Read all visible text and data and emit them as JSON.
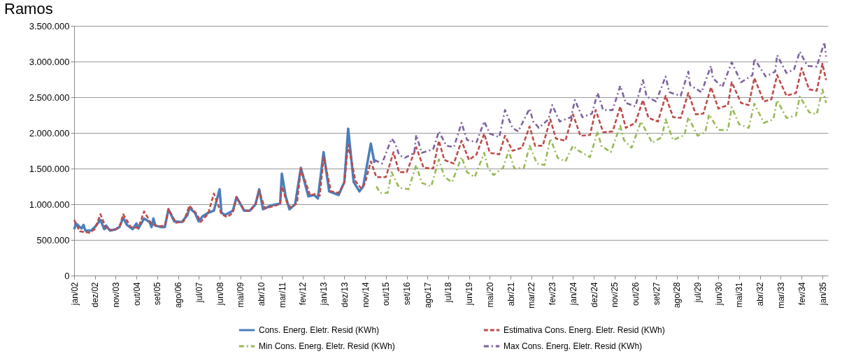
{
  "chart_data": {
    "type": "line",
    "title": "Ramos",
    "xlim": [
      "2002-01",
      "2035-04"
    ],
    "xticks": [
      {
        "value": "2002-01",
        "label": "jan/02"
      },
      {
        "value": "2002-12",
        "label": "dez/02"
      },
      {
        "value": "2003-11",
        "label": "nov/03"
      },
      {
        "value": "2004-10",
        "label": "out/04"
      },
      {
        "value": "2005-09",
        "label": "set/05"
      },
      {
        "value": "2006-08",
        "label": "ago/06"
      },
      {
        "value": "2007-07",
        "label": "jul/07"
      },
      {
        "value": "2008-06",
        "label": "jun/08"
      },
      {
        "value": "2009-05",
        "label": "mai/09"
      },
      {
        "value": "2010-04",
        "label": "abr/10"
      },
      {
        "value": "2011-03",
        "label": "mar/11"
      },
      {
        "value": "2012-02",
        "label": "fev/12"
      },
      {
        "value": "2013-01",
        "label": "jan/13"
      },
      {
        "value": "2013-12",
        "label": "dez/13"
      },
      {
        "value": "2014-11",
        "label": "nov/14"
      },
      {
        "value": "2015-10",
        "label": "out/15"
      },
      {
        "value": "2016-09",
        "label": "set/16"
      },
      {
        "value": "2017-08",
        "label": "ago/17"
      },
      {
        "value": "2018-07",
        "label": "jul/18"
      },
      {
        "value": "2019-06",
        "label": "jun/19"
      },
      {
        "value": "2020-05",
        "label": "mai/20"
      },
      {
        "value": "2021-04",
        "label": "abr/21"
      },
      {
        "value": "2022-03",
        "label": "mar/22"
      },
      {
        "value": "2023-02",
        "label": "fev/23"
      },
      {
        "value": "2024-01",
        "label": "jan/24"
      },
      {
        "value": "2024-12",
        "label": "dez/24"
      },
      {
        "value": "2025-11",
        "label": "nov/25"
      },
      {
        "value": "2026-10",
        "label": "out/26"
      },
      {
        "value": "2027-09",
        "label": "set/27"
      },
      {
        "value": "2028-08",
        "label": "ago/28"
      },
      {
        "value": "2029-07",
        "label": "jul/29"
      },
      {
        "value": "2030-06",
        "label": "jun/30"
      },
      {
        "value": "2031-05",
        "label": "mai/31"
      },
      {
        "value": "2032-04",
        "label": "abr/32"
      },
      {
        "value": "2033-03",
        "label": "mar/33"
      },
      {
        "value": "2034-02",
        "label": "fev/34"
      },
      {
        "value": "2035-01",
        "label": "jan/35"
      }
    ],
    "ylim": [
      0,
      3500000
    ],
    "yticks": [
      0,
      {
        "value": 500000,
        "label": "500.000"
      },
      {
        "value": 1000000,
        "label": "1.000.000"
      },
      {
        "value": 1500000,
        "label": "1.500.000"
      },
      {
        "value": 2000000,
        "label": "2.000.000"
      },
      {
        "value": 2500000,
        "label": "2.500.000"
      },
      {
        "value": 3000000,
        "label": "3.000.000"
      },
      {
        "value": 3500000,
        "label": "3.500.000"
      }
    ],
    "grid": "y",
    "legend": "bottom",
    "series": [
      {
        "name": "Cons. Energ. Eletr. Resid (KWh)",
        "color": "#4a7ebb",
        "line_style": "solid",
        "x": [
          "2002-01",
          "2002-02",
          "2002-05",
          "2002-06",
          "2002-07",
          "2002-10",
          "2002-12",
          "2003-03",
          "2003-05",
          "2003-06",
          "2003-08",
          "2003-11",
          "2004-01",
          "2004-03",
          "2004-05",
          "2004-08",
          "2004-10",
          "2004-11",
          "2005-02",
          "2005-05",
          "2005-06",
          "2005-07",
          "2005-08",
          "2005-11",
          "2006-01",
          "2006-03",
          "2006-06",
          "2006-10",
          "2007-01",
          "2007-02",
          "2007-05",
          "2007-07",
          "2007-09",
          "2007-12",
          "2008-03",
          "2008-06",
          "2008-07",
          "2008-09",
          "2009-01",
          "2009-03",
          "2009-07",
          "2009-10",
          "2010-01",
          "2010-03",
          "2010-05",
          "2010-09",
          "2011-02",
          "2011-03",
          "2011-05",
          "2011-07",
          "2011-10",
          "2012-01",
          "2012-05",
          "2012-08",
          "2012-10",
          "2013-01",
          "2013-04",
          "2013-09",
          "2013-12",
          "2014-02",
          "2014-05",
          "2014-08",
          "2014-10",
          "2015-02",
          "2015-04"
        ],
        "values": [
          650000,
          730000,
          660000,
          710000,
          630000,
          630000,
          680000,
          780000,
          650000,
          700000,
          630000,
          650000,
          680000,
          810000,
          710000,
          650000,
          730000,
          660000,
          800000,
          750000,
          680000,
          800000,
          700000,
          680000,
          680000,
          930000,
          760000,
          750000,
          850000,
          950000,
          880000,
          760000,
          830000,
          880000,
          910000,
          1210000,
          880000,
          850000,
          910000,
          1100000,
          910000,
          910000,
          1000000,
          1210000,
          930000,
          980000,
          1010000,
          1430000,
          1110000,
          930000,
          1000000,
          1510000,
          1110000,
          1130000,
          1080000,
          1730000,
          1180000,
          1130000,
          1310000,
          2060000,
          1310000,
          1180000,
          1250000,
          1850000,
          1580000
        ]
      },
      {
        "name": "Estimativa Cons. Energ. Eletr. Resid (KWh)",
        "color": "#be4b48",
        "line_style": "dashed",
        "x": [
          "2002-01",
          "2002-04",
          "2002-09",
          "2002-12",
          "2003-03",
          "2003-06",
          "2003-10",
          "2004-01",
          "2004-03",
          "2004-07",
          "2004-11",
          "2005-02",
          "2005-06",
          "2005-10",
          "2006-01",
          "2006-03",
          "2006-07",
          "2006-11",
          "2007-02",
          "2007-06",
          "2007-08",
          "2007-12",
          "2008-03",
          "2008-07",
          "2008-10",
          "2009-01",
          "2009-03",
          "2009-07",
          "2009-10",
          "2010-01",
          "2010-03",
          "2010-06",
          "2010-10",
          "2011-02",
          "2011-03",
          "2011-06",
          "2011-08",
          "2011-11",
          "2012-01",
          "2012-06",
          "2012-09",
          "2012-11",
          "2013-01",
          "2013-05",
          "2013-09",
          "2013-12",
          "2014-02",
          "2014-06",
          "2014-09",
          "2014-11",
          "2015-02",
          "2015-05",
          "2015-10",
          "2016-02",
          "2016-05",
          "2016-09",
          "2017-02",
          "2017-06",
          "2017-11",
          "2018-02",
          "2018-05",
          "2018-10",
          "2019-02",
          "2019-06",
          "2019-10",
          "2020-02",
          "2020-05",
          "2020-10",
          "2021-01",
          "2021-05",
          "2021-10",
          "2022-02",
          "2022-05",
          "2022-09",
          "2023-01",
          "2023-04",
          "2023-09",
          "2024-01",
          "2024-05",
          "2024-10",
          "2025-01",
          "2025-05",
          "2025-10",
          "2026-02",
          "2026-05",
          "2026-10",
          "2027-02",
          "2027-05",
          "2027-10",
          "2028-02",
          "2028-06",
          "2028-10",
          "2029-02",
          "2029-06",
          "2029-10",
          "2030-02",
          "2030-06",
          "2030-11",
          "2031-01",
          "2031-06",
          "2031-10",
          "2032-01",
          "2032-06",
          "2032-10",
          "2033-01",
          "2033-06",
          "2033-11",
          "2034-02",
          "2034-06",
          "2034-10",
          "2035-01",
          "2035-03"
        ],
        "values": [
          780000,
          620000,
          600000,
          650000,
          860000,
          660000,
          630000,
          680000,
          860000,
          680000,
          670000,
          900000,
          720000,
          690000,
          700000,
          930000,
          740000,
          760000,
          980000,
          860000,
          750000,
          870000,
          1150000,
          860000,
          820000,
          880000,
          1100000,
          920000,
          900000,
          1000000,
          1190000,
          940000,
          970000,
          1000000,
          1250000,
          1000000,
          950000,
          1020000,
          1500000,
          1120000,
          1150000,
          1120000,
          1660000,
          1180000,
          1160000,
          1300000,
          1830000,
          1320000,
          1220000,
          1300000,
          1600000,
          1380000,
          1380000,
          1730000,
          1450000,
          1450000,
          1800000,
          1510000,
          1500000,
          1890000,
          1620000,
          1570000,
          1890000,
          1620000,
          1700000,
          1990000,
          1720000,
          1700000,
          1960000,
          1750000,
          1790000,
          2090000,
          1820000,
          1820000,
          2190000,
          1920000,
          1890000,
          2260000,
          1960000,
          1970000,
          2320000,
          2010000,
          2020000,
          2370000,
          2070000,
          2140000,
          2460000,
          2210000,
          2160000,
          2520000,
          2220000,
          2210000,
          2560000,
          2260000,
          2270000,
          2640000,
          2340000,
          2390000,
          2710000,
          2420000,
          2390000,
          2770000,
          2440000,
          2470000,
          2810000,
          2520000,
          2560000,
          2910000,
          2610000,
          2590000,
          2970000,
          2740000
        ]
      },
      {
        "name": "Min Cons. Energ. Eletr. Resid (KWh)",
        "color": "#98b954",
        "line_style": "dotted",
        "x": [
          "2015-05",
          "2015-07",
          "2015-11",
          "2016-01",
          "2016-05",
          "2016-10",
          "2017-02",
          "2017-05",
          "2017-10",
          "2018-02",
          "2018-05",
          "2018-09",
          "2019-02",
          "2019-05",
          "2019-09",
          "2020-02",
          "2020-04",
          "2020-07",
          "2020-12",
          "2021-03",
          "2021-06",
          "2021-11",
          "2022-02",
          "2022-06",
          "2022-10",
          "2023-01",
          "2023-05",
          "2023-09",
          "2024-01",
          "2024-04",
          "2024-10",
          "2025-02",
          "2025-04",
          "2025-09",
          "2026-02",
          "2026-04",
          "2026-08",
          "2027-01",
          "2027-07",
          "2027-12",
          "2028-02",
          "2028-06",
          "2028-12",
          "2029-02",
          "2029-07",
          "2029-11",
          "2030-01",
          "2030-06",
          "2030-11",
          "2031-01",
          "2031-05",
          "2031-10",
          "2032-01",
          "2032-06",
          "2032-11",
          "2033-01",
          "2033-06",
          "2033-11",
          "2034-01",
          "2034-06",
          "2034-10",
          "2035-01",
          "2035-03"
        ],
        "values": [
          1250000,
          1160000,
          1160000,
          1450000,
          1230000,
          1210000,
          1550000,
          1300000,
          1250000,
          1630000,
          1380000,
          1310000,
          1660000,
          1450000,
          1380000,
          1720000,
          1510000,
          1410000,
          1510000,
          1750000,
          1500000,
          1510000,
          1820000,
          1570000,
          1550000,
          1920000,
          1650000,
          1600000,
          1820000,
          1750000,
          1660000,
          2020000,
          1820000,
          1730000,
          2100000,
          1900000,
          1790000,
          2160000,
          1860000,
          1940000,
          2190000,
          1900000,
          1970000,
          2220000,
          1960000,
          2010000,
          2260000,
          2040000,
          2040000,
          2360000,
          2120000,
          2070000,
          2410000,
          2140000,
          2190000,
          2460000,
          2210000,
          2240000,
          2510000,
          2290000,
          2260000,
          2610000,
          2420000
        ]
      },
      {
        "name": "Max Cons. Energ. Eletr. Resid (KWh)",
        "color": "#7d60a0",
        "line_style": "dotted",
        "x": [
          "2015-04",
          "2015-08",
          "2016-01",
          "2016-03",
          "2016-05",
          "2016-08",
          "2017-01",
          "2017-02",
          "2017-05",
          "2017-11",
          "2018-02",
          "2018-06",
          "2018-10",
          "2019-02",
          "2019-05",
          "2019-10",
          "2020-02",
          "2020-05",
          "2020-10",
          "2021-01",
          "2021-05",
          "2021-08",
          "2022-02",
          "2022-04",
          "2022-07",
          "2022-12",
          "2023-02",
          "2023-06",
          "2023-12",
          "2024-02",
          "2024-06",
          "2024-11",
          "2025-02",
          "2025-05",
          "2025-10",
          "2026-02",
          "2026-05",
          "2026-10",
          "2027-02",
          "2027-04",
          "2027-09",
          "2028-02",
          "2028-04",
          "2028-10",
          "2029-02",
          "2029-03",
          "2029-09",
          "2030-02",
          "2030-03",
          "2030-08",
          "2031-01",
          "2031-06",
          "2031-12",
          "2032-01",
          "2032-07",
          "2032-12",
          "2033-01",
          "2033-06",
          "2033-10",
          "2034-01",
          "2034-05",
          "2034-10",
          "2035-02",
          "2035-03"
        ],
        "values": [
          1620000,
          1570000,
          1920000,
          1850000,
          1690000,
          1650000,
          1720000,
          1970000,
          1720000,
          1770000,
          2020000,
          1820000,
          1800000,
          2140000,
          1900000,
          1870000,
          2160000,
          1990000,
          1940000,
          2320000,
          2070000,
          2020000,
          2340000,
          2160000,
          2070000,
          2190000,
          2390000,
          2160000,
          2220000,
          2460000,
          2220000,
          2270000,
          2560000,
          2320000,
          2320000,
          2660000,
          2420000,
          2370000,
          2740000,
          2510000,
          2440000,
          2790000,
          2570000,
          2520000,
          2860000,
          2670000,
          2570000,
          2940000,
          2770000,
          2640000,
          2990000,
          2710000,
          2810000,
          3040000,
          2790000,
          2860000,
          3090000,
          2840000,
          2890000,
          3140000,
          2940000,
          2930000,
          3270000,
          3070000
        ]
      }
    ]
  }
}
